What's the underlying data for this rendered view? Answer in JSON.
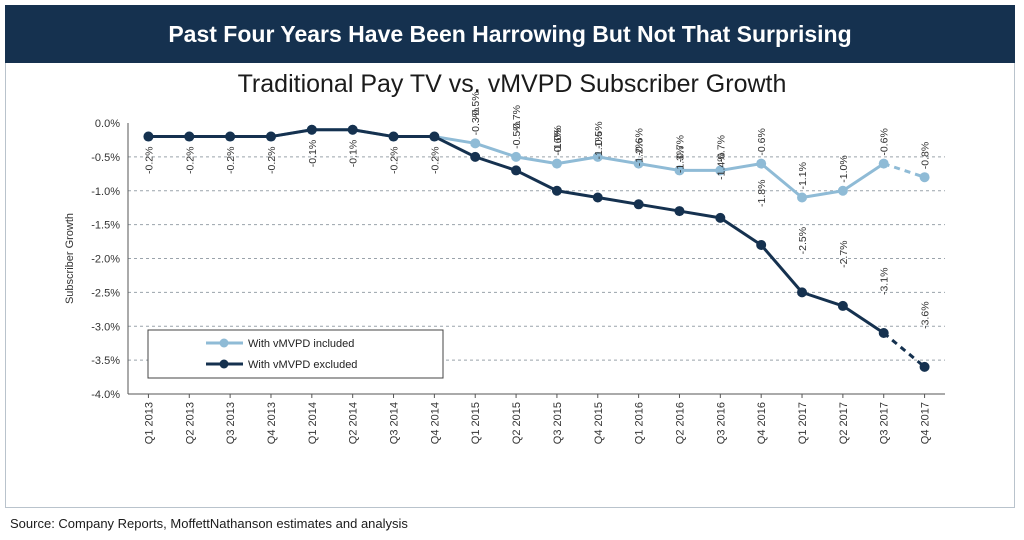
{
  "header": {
    "banner_title": "Past Four Years Have Been Harrowing But Not That Surprising",
    "source": "Source: Company Reports, MoffettNathanson estimates and analysis"
  },
  "colors": {
    "banner": "#15314f",
    "included": "#8fbbd6",
    "excluded": "#15314f"
  },
  "chart_data": {
    "type": "line",
    "title": "Traditional Pay TV vs. vMVPD Subscriber Growth",
    "ylabel": "Subscriber Growth",
    "xlabel": "",
    "ylim": [
      -4.0,
      0.0
    ],
    "yticks": [
      "0.0%",
      "-0.5%",
      "-1.0%",
      "-1.5%",
      "-2.0%",
      "-2.5%",
      "-3.0%",
      "-3.5%",
      "-4.0%"
    ],
    "grid": true,
    "legend_position": "bottom-left",
    "categories": [
      "Q1 2013",
      "Q2 2013",
      "Q3 2013",
      "Q4 2013",
      "Q1 2014",
      "Q2 2014",
      "Q3 2014",
      "Q4 2014",
      "Q1 2015",
      "Q2 2015",
      "Q3 2015",
      "Q4 2015",
      "Q1 2016",
      "Q2 2016",
      "Q3 2016",
      "Q4 2016",
      "Q1 2017",
      "Q2 2017",
      "Q3 2017",
      "Q4 2017"
    ],
    "series": [
      {
        "name": "With vMVPD included",
        "values": [
          -0.2,
          -0.2,
          -0.2,
          -0.2,
          -0.1,
          -0.1,
          -0.2,
          -0.2,
          -0.3,
          -0.5,
          -0.6,
          -0.5,
          -0.6,
          -0.7,
          -0.7,
          -0.6,
          -1.1,
          -1.0,
          -0.6,
          -0.8
        ],
        "labels": [
          "-0.2%",
          "-0.2%",
          "-0.2%",
          "-0.2%",
          "-0.1%",
          "-0.1%",
          "-0.2%",
          "-0.2%",
          "-0.3%",
          "-0.5%",
          "-0.6%",
          "-0.5%",
          "-0.6%",
          "-0.7%",
          "-0.7%",
          "-0.6%",
          "-1.1%",
          "-1.0%",
          "-0.6%",
          "-0.8%"
        ],
        "dashed_last_segment": true
      },
      {
        "name": "With vMVPD excluded",
        "values": [
          -0.2,
          -0.2,
          -0.2,
          -0.2,
          -0.1,
          -0.1,
          -0.2,
          -0.2,
          -0.5,
          -0.7,
          -1.0,
          -1.1,
          -1.2,
          -1.3,
          -1.4,
          -1.8,
          -2.5,
          -2.7,
          -3.1,
          -3.6
        ],
        "labels": [
          "",
          "",
          "",
          "",
          "",
          "",
          "",
          "",
          "-0.5%",
          "-0.7%",
          "-1.0%",
          "-1.1%",
          "-1.2%",
          "-1.3%",
          "-1.4%",
          "-1.8%",
          "-2.5%",
          "-2.7%",
          "-3.1%",
          "-3.6%"
        ],
        "dashed_last_segment": true
      }
    ]
  }
}
